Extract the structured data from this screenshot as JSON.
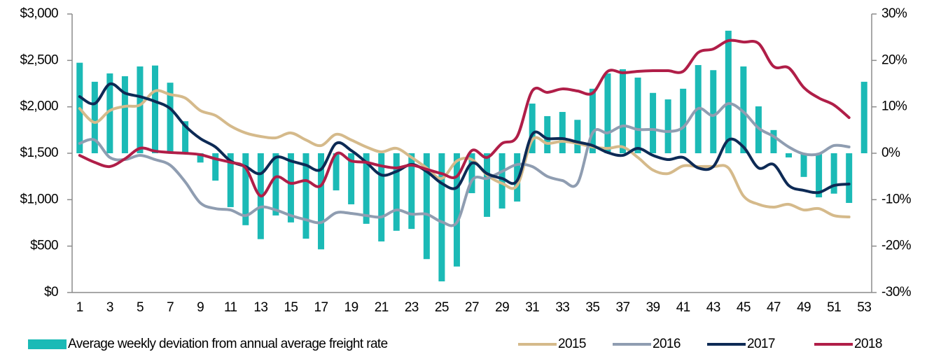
{
  "chart_data": {
    "type": "combo",
    "categories": [
      1,
      null,
      3,
      null,
      5,
      null,
      7,
      null,
      9,
      null,
      11,
      null,
      13,
      null,
      15,
      null,
      17,
      null,
      19,
      null,
      21,
      null,
      23,
      null,
      25,
      null,
      27,
      null,
      29,
      null,
      31,
      null,
      33,
      null,
      35,
      null,
      37,
      null,
      39,
      null,
      41,
      null,
      43,
      null,
      45,
      null,
      47,
      null,
      49,
      null,
      51,
      null,
      53
    ],
    "ylim": [
      0,
      3000
    ],
    "yticks": [
      {
        "value": 0,
        "label": "$0"
      },
      {
        "value": 500,
        "label": "$500"
      },
      {
        "value": 1000,
        "label": "$1,000"
      },
      {
        "value": 1500,
        "label": "$1,500"
      },
      {
        "value": 2000,
        "label": "$2,000"
      },
      {
        "value": 2500,
        "label": "$2,500"
      },
      {
        "value": 3000,
        "label": "$3,000"
      }
    ],
    "y2lim": [
      -30,
      30
    ],
    "y2ticks": [
      {
        "value": -30,
        "label": "-30%"
      },
      {
        "value": -20,
        "label": "-20%"
      },
      {
        "value": -10,
        "label": "-10%"
      },
      {
        "value": 0,
        "label": "0%"
      },
      {
        "value": 10,
        "label": "10%"
      },
      {
        "value": 20,
        "label": "20%"
      },
      {
        "value": 30,
        "label": "30%"
      }
    ],
    "grid": false,
    "legend": "bottom",
    "series": [
      {
        "name": "Average weekly deviation from annual average freight rate",
        "type": "bar",
        "axis": "y2",
        "color": "#1bbab6",
        "values": [
          19.5,
          15.4,
          17.2,
          16.6,
          18.7,
          18.9,
          15.2,
          6.9,
          -2.0,
          -5.9,
          -11.6,
          -15.5,
          -18.5,
          -13.4,
          -14.9,
          -18.4,
          -20.7,
          -8.0,
          -11.0,
          -15.2,
          -19.0,
          -16.7,
          -16.3,
          -22.8,
          -27.6,
          -24.4,
          -8.6,
          -13.7,
          -11.9,
          -10.4,
          10.7,
          8.0,
          8.9,
          7.2,
          13.9,
          17.2,
          18.1,
          16.3,
          13.0,
          11.6,
          13.9,
          19.0,
          17.9,
          26.4,
          18.7,
          10.1,
          5.0,
          -0.9,
          -5.1,
          -9.5,
          -8.7,
          -10.7,
          15.4
        ]
      },
      {
        "name": "2015",
        "type": "line",
        "color": "#d5ba8b",
        "values": [
          1982,
          1832,
          1960,
          2005,
          2020,
          2171,
          2133,
          2095,
          1960,
          1907,
          1794,
          1719,
          1681,
          1666,
          1719,
          1643,
          1583,
          1704,
          1643,
          1568,
          1515,
          1553,
          1455,
          1342,
          1229,
          1417,
          1432,
          1266,
          1176,
          1153,
          1643,
          1606,
          1628,
          1606,
          1568,
          1553,
          1568,
          1455,
          1319,
          1281,
          1364,
          1357,
          1357,
          1342,
          1040,
          950,
          920,
          950,
          889,
          904,
          829,
          814,
          null
        ]
      },
      {
        "name": "2016",
        "type": "line",
        "color": "#8f9db1",
        "values": [
          1606,
          1643,
          1455,
          1432,
          1477,
          1432,
          1372,
          1191,
          965,
          904,
          889,
          829,
          920,
          889,
          829,
          784,
          754,
          859,
          852,
          829,
          814,
          889,
          844,
          844,
          761,
          754,
          1206,
          1229,
          1304,
          1379,
          1357,
          1251,
          1206,
          1176,
          1719,
          1719,
          1794,
          1756,
          1756,
          1734,
          1779,
          1982,
          1907,
          2035,
          1945,
          1771,
          1681,
          1568,
          1493,
          1493,
          1583,
          1568,
          null
        ]
      },
      {
        "name": "2017",
        "type": "line",
        "color": "#0d2a55",
        "values": [
          2110,
          2035,
          2246,
          2148,
          2110,
          2058,
          1982,
          1794,
          1658,
          1568,
          1417,
          1357,
          1281,
          1455,
          1417,
          1372,
          1327,
          1606,
          1530,
          1402,
          1266,
          1304,
          1379,
          1304,
          1176,
          1131,
          1394,
          1281,
          1229,
          1206,
          1704,
          1658,
          1658,
          1621,
          1583,
          1508,
          1477,
          1553,
          1477,
          1432,
          1455,
          1342,
          1357,
          1643,
          1568,
          1342,
          1379,
          1153,
          1100,
          1078,
          1153,
          1168,
          null
        ]
      },
      {
        "name": "2018",
        "type": "line",
        "color": "#b01e48",
        "values": [
          1477,
          1402,
          1357,
          1440,
          1553,
          1523,
          1508,
          1500,
          1485,
          1440,
          1402,
          1342,
          1040,
          1244,
          1176,
          1206,
          1153,
          1493,
          1417,
          1402,
          1364,
          1342,
          1372,
          1327,
          1281,
          1251,
          1530,
          1455,
          1606,
          1681,
          2171,
          2156,
          2193,
          2171,
          2148,
          2382,
          2367,
          2382,
          2389,
          2389,
          2382,
          2585,
          2623,
          2713,
          2698,
          2683,
          2435,
          2420,
          2208,
          2095,
          2020,
          1884,
          null
        ]
      }
    ]
  }
}
